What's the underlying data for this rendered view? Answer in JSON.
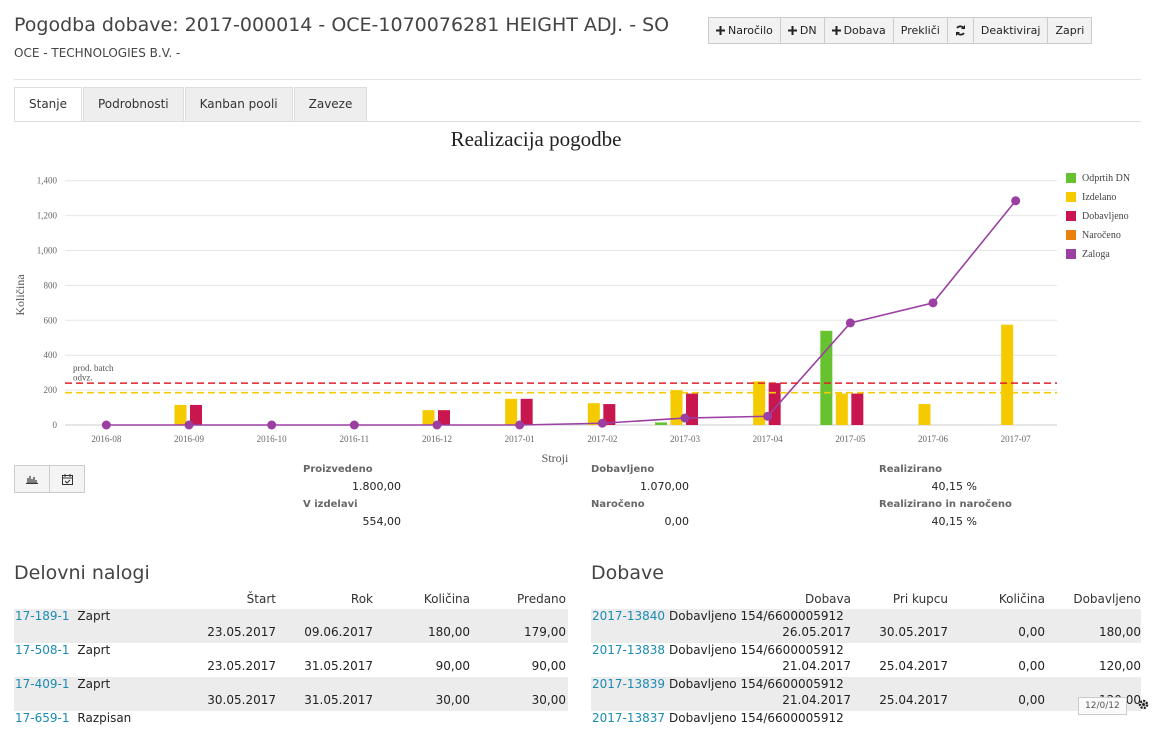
{
  "header": {
    "title": "Pogodba dobave: 2017-000014 - OCE-1070076281 HEIGHT ADJ. - SO",
    "subtitle": "OCE - TECHNOLOGIES B.V. -",
    "buttons": [
      "Naročilo",
      "DN",
      "Dobava",
      "Prekliči",
      "Deaktiviraj",
      "Zapri"
    ]
  },
  "tabs": [
    "Stanje",
    "Podrobnosti",
    "Kanban pooli",
    "Zaveze"
  ],
  "chart_data": {
    "type": "bar",
    "title": "Realizacija pogodbe",
    "x_label": "Stroji",
    "y_label": "Količina",
    "categories": [
      "2016-08",
      "2016-09",
      "2016-10",
      "2016-11",
      "2016-12",
      "2017-01",
      "2017-02",
      "2017-03",
      "2017-04",
      "2017-05",
      "2017-06",
      "2017-07"
    ],
    "series": [
      {
        "name": "Odprtih DN",
        "type": "bar",
        "color": "#66c22e",
        "values": [
          0,
          0,
          0,
          0,
          0,
          0,
          0,
          15,
          0,
          540,
          0,
          0
        ]
      },
      {
        "name": "Izdelano",
        "type": "bar",
        "color": "#f5cb00",
        "values": [
          0,
          115,
          0,
          0,
          85,
          150,
          125,
          200,
          250,
          180,
          120,
          575
        ]
      },
      {
        "name": "Dobavljeno",
        "type": "bar",
        "color": "#c8174f",
        "values": [
          0,
          115,
          0,
          0,
          85,
          150,
          120,
          180,
          240,
          180,
          0,
          0
        ]
      },
      {
        "name": "Naročeno",
        "type": "bar",
        "color": "#e8820c",
        "values": [
          0,
          0,
          0,
          0,
          0,
          0,
          0,
          0,
          0,
          0,
          0,
          0
        ]
      },
      {
        "name": "Zaloga",
        "type": "line",
        "color": "#9b3fa3",
        "values": [
          0,
          0,
          0,
          0,
          0,
          0,
          10,
          40,
          50,
          585,
          700,
          1285
        ]
      }
    ],
    "reference_lines": [
      {
        "label": "prod. batch",
        "value": 240,
        "color": "#e0202a"
      },
      {
        "label": "odvz.",
        "value": 185,
        "color": "#f5cb00"
      }
    ],
    "ylim": [
      0,
      1450
    ],
    "yticks": [
      0,
      200,
      400,
      600,
      800,
      {
        "value": 1000,
        "label": "1,000"
      },
      {
        "value": 1200,
        "label": "1,200"
      },
      {
        "value": 1400,
        "label": "1,400"
      }
    ],
    "grid": true
  },
  "summary": [
    {
      "label": "Proizvedeno",
      "value": "1.800,00"
    },
    {
      "label": "V izdelavi",
      "value": "554,00"
    },
    {
      "label": "Dobavljeno",
      "value": "1.070,00"
    },
    {
      "label": "Naročeno",
      "value": "0,00"
    },
    {
      "label": "Realizirano",
      "value": "40,15 %"
    },
    {
      "label": "Realizirano in naročeno",
      "value": "40,15 %"
    }
  ],
  "work_orders": {
    "title": "Delovni nalogi",
    "headers": [
      "Štart",
      "Rok",
      "Količina",
      "Predano"
    ],
    "rows": [
      {
        "id": "17-189-1",
        "status": "Zaprt",
        "cells": [
          "23.05.2017",
          "09.06.2017",
          "180,00",
          "179,00"
        ]
      },
      {
        "id": "17-508-1",
        "status": "Zaprt",
        "cells": [
          "23.05.2017",
          "31.05.2017",
          "90,00",
          "90,00"
        ]
      },
      {
        "id": "17-409-1",
        "status": "Zaprt",
        "cells": [
          "30.05.2017",
          "31.05.2017",
          "30,00",
          "30,00"
        ]
      },
      {
        "id": "17-659-1",
        "status": "Razpisan"
      }
    ]
  },
  "deliveries": {
    "title": "Dobave",
    "headers": [
      "Dobava",
      "Pri kupcu",
      "Količina",
      "Dobavljeno"
    ],
    "rows": [
      {
        "id": "2017-13840",
        "status": "Dobavljeno 154/6600005912",
        "cells": [
          "26.05.2017",
          "30.05.2017",
          "0,00",
          "180,00"
        ]
      },
      {
        "id": "2017-13838",
        "status": "Dobavljeno 154/6600005912",
        "cells": [
          "21.04.2017",
          "25.04.2017",
          "0,00",
          "120,00"
        ]
      },
      {
        "id": "2017-13839",
        "status": "Dobavljeno 154/6600005912",
        "cells": [
          "21.04.2017",
          "25.04.2017",
          "0,00",
          "120,00"
        ]
      },
      {
        "id": "2017-13837",
        "status": "Dobavljeno 154/6600005912"
      }
    ]
  },
  "pager": "12/0/12"
}
